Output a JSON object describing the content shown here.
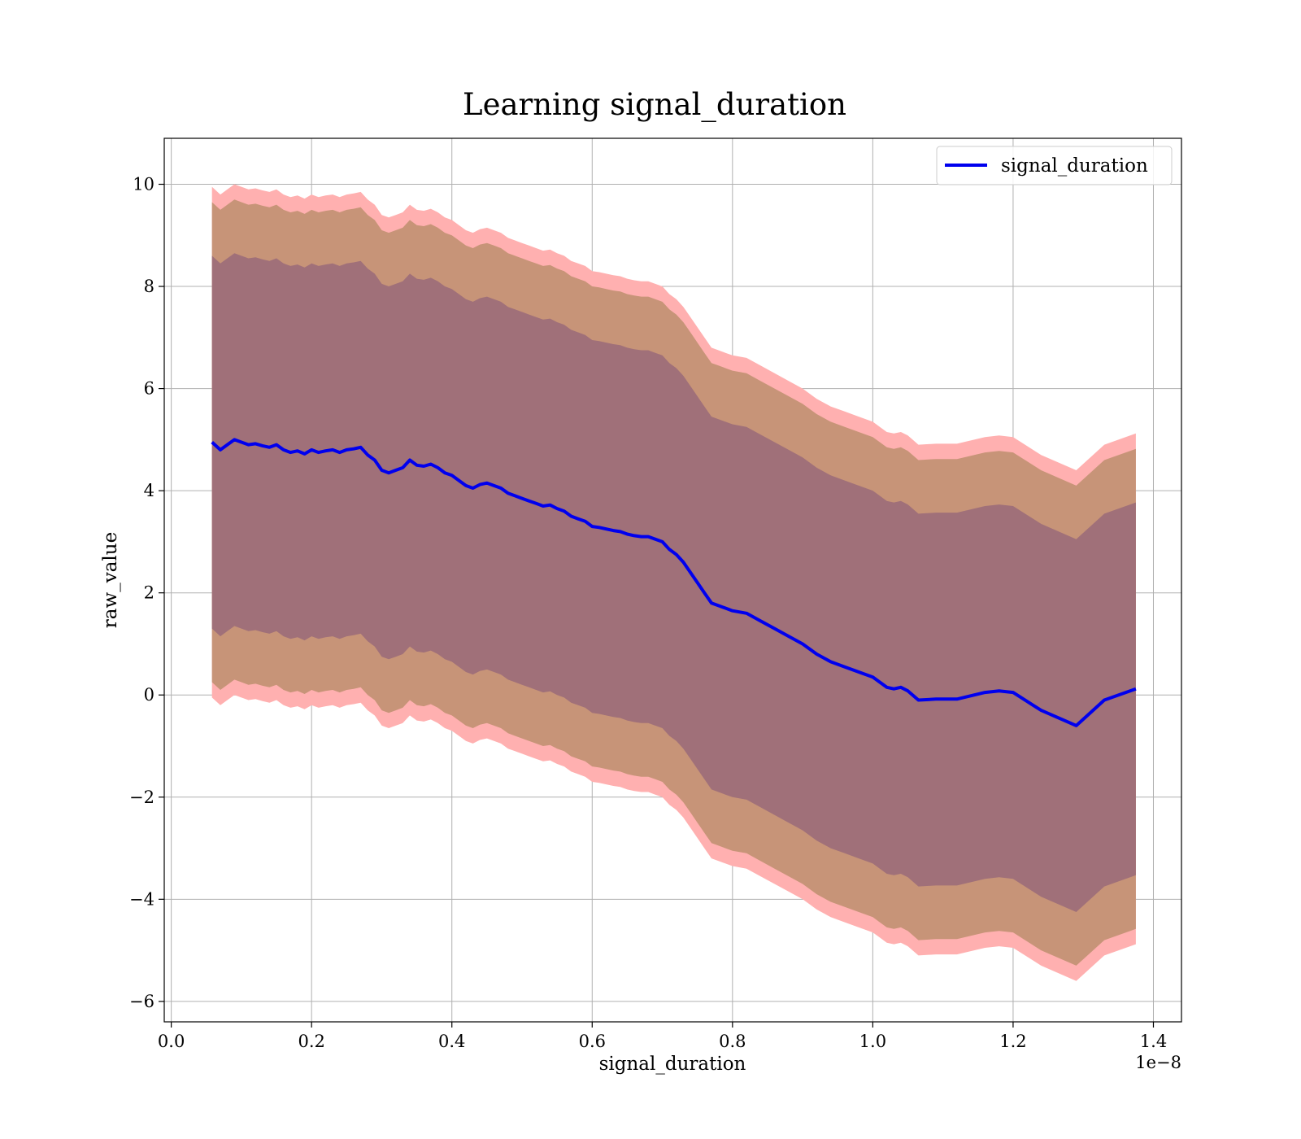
{
  "chart_data": {
    "type": "line",
    "title": "Learning signal_duration",
    "xlabel": "signal_duration",
    "ylabel": "raw_value",
    "x_offset_label": "1e−8",
    "xlim": [
      -0.01,
      1.44
    ],
    "ylim": [
      -6.4,
      10.9
    ],
    "x_ticks": [
      0.0,
      0.2,
      0.4,
      0.6,
      0.8,
      1.0,
      1.2,
      1.4
    ],
    "x_tick_labels": [
      "0.0",
      "0.2",
      "0.4",
      "0.6",
      "0.8",
      "1.0",
      "1.2",
      "1.4"
    ],
    "y_ticks": [
      -6,
      -4,
      -2,
      0,
      2,
      4,
      6,
      8,
      10
    ],
    "y_tick_labels": [
      "−6",
      "−4",
      "−2",
      "0",
      "2",
      "4",
      "6",
      "8",
      "10"
    ],
    "grid": true,
    "legend_position": "top-right",
    "colors": {
      "line": "#0000ee",
      "band_outer": "#ffb0b0",
      "band_middle": "#c79478",
      "band_inner": "#a07079",
      "grid": "#b0b0b0"
    },
    "series": [
      {
        "name": "signal_duration",
        "x": [
          0.058,
          0.07,
          0.08,
          0.09,
          0.1,
          0.11,
          0.12,
          0.13,
          0.14,
          0.15,
          0.16,
          0.17,
          0.18,
          0.19,
          0.2,
          0.21,
          0.22,
          0.23,
          0.24,
          0.25,
          0.26,
          0.27,
          0.28,
          0.29,
          0.3,
          0.31,
          0.32,
          0.33,
          0.34,
          0.35,
          0.36,
          0.37,
          0.38,
          0.39,
          0.4,
          0.41,
          0.42,
          0.43,
          0.44,
          0.45,
          0.46,
          0.47,
          0.48,
          0.49,
          0.5,
          0.51,
          0.52,
          0.53,
          0.54,
          0.55,
          0.56,
          0.57,
          0.58,
          0.59,
          0.6,
          0.61,
          0.62,
          0.63,
          0.64,
          0.65,
          0.66,
          0.67,
          0.68,
          0.69,
          0.7,
          0.71,
          0.72,
          0.73,
          0.74,
          0.75,
          0.76,
          0.77,
          0.78,
          0.79,
          0.8,
          0.82,
          0.84,
          0.86,
          0.88,
          0.9,
          0.92,
          0.94,
          0.96,
          0.98,
          1.0,
          1.01,
          1.02,
          1.03,
          1.04,
          1.05,
          1.065,
          1.09,
          1.12,
          1.16,
          1.18,
          1.2,
          1.24,
          1.29,
          1.33,
          1.375
        ],
        "values": [
          4.95,
          4.8,
          4.9,
          5.0,
          4.95,
          4.9,
          4.92,
          4.88,
          4.85,
          4.9,
          4.8,
          4.75,
          4.78,
          4.72,
          4.8,
          4.75,
          4.78,
          4.8,
          4.75,
          4.8,
          4.82,
          4.85,
          4.7,
          4.6,
          4.4,
          4.35,
          4.4,
          4.45,
          4.6,
          4.5,
          4.48,
          4.52,
          4.45,
          4.35,
          4.3,
          4.2,
          4.1,
          4.05,
          4.12,
          4.15,
          4.1,
          4.05,
          3.95,
          3.9,
          3.85,
          3.8,
          3.75,
          3.7,
          3.72,
          3.65,
          3.6,
          3.5,
          3.45,
          3.4,
          3.3,
          3.28,
          3.25,
          3.22,
          3.2,
          3.15,
          3.12,
          3.1,
          3.1,
          3.05,
          3.0,
          2.85,
          2.75,
          2.6,
          2.4,
          2.2,
          2.0,
          1.8,
          1.75,
          1.7,
          1.65,
          1.6,
          1.45,
          1.3,
          1.15,
          1.0,
          0.8,
          0.65,
          0.55,
          0.45,
          0.35,
          0.25,
          0.15,
          0.12,
          0.15,
          0.08,
          -0.1,
          -0.08,
          -0.08,
          0.05,
          0.08,
          0.05,
          -0.3,
          -0.6,
          -0.1,
          0.12
        ],
        "band_inner_upper": [
          8.6,
          8.45,
          8.55,
          8.65,
          8.6,
          8.55,
          8.57,
          8.53,
          8.5,
          8.55,
          8.45,
          8.4,
          8.43,
          8.37,
          8.45,
          8.4,
          8.43,
          8.45,
          8.4,
          8.45,
          8.47,
          8.5,
          8.35,
          8.25,
          8.05,
          8.0,
          8.05,
          8.1,
          8.25,
          8.15,
          8.13,
          8.17,
          8.1,
          8.0,
          7.95,
          7.85,
          7.75,
          7.7,
          7.77,
          7.8,
          7.75,
          7.7,
          7.6,
          7.55,
          7.5,
          7.45,
          7.4,
          7.35,
          7.37,
          7.3,
          7.25,
          7.15,
          7.1,
          7.05,
          6.95,
          6.93,
          6.9,
          6.87,
          6.85,
          6.8,
          6.77,
          6.75,
          6.75,
          6.7,
          6.65,
          6.5,
          6.4,
          6.25,
          6.05,
          5.85,
          5.65,
          5.45,
          5.4,
          5.35,
          5.3,
          5.25,
          5.1,
          4.95,
          4.8,
          4.65,
          4.45,
          4.3,
          4.2,
          4.1,
          4.0,
          3.9,
          3.8,
          3.77,
          3.8,
          3.73,
          3.55,
          3.57,
          3.57,
          3.7,
          3.73,
          3.7,
          3.35,
          3.05,
          3.55,
          3.77
        ],
        "band_inner_lower": [
          1.3,
          1.15,
          1.25,
          1.35,
          1.3,
          1.25,
          1.27,
          1.23,
          1.2,
          1.25,
          1.15,
          1.1,
          1.13,
          1.07,
          1.15,
          1.1,
          1.13,
          1.15,
          1.1,
          1.15,
          1.17,
          1.2,
          1.05,
          0.95,
          0.75,
          0.7,
          0.75,
          0.8,
          0.95,
          0.85,
          0.83,
          0.87,
          0.8,
          0.7,
          0.65,
          0.55,
          0.45,
          0.4,
          0.47,
          0.5,
          0.45,
          0.4,
          0.3,
          0.25,
          0.2,
          0.15,
          0.1,
          0.05,
          0.07,
          0.0,
          -0.05,
          -0.15,
          -0.2,
          -0.25,
          -0.35,
          -0.37,
          -0.4,
          -0.43,
          -0.45,
          -0.5,
          -0.53,
          -0.55,
          -0.55,
          -0.6,
          -0.65,
          -0.8,
          -0.9,
          -1.05,
          -1.25,
          -1.45,
          -1.65,
          -1.85,
          -1.9,
          -1.95,
          -2.0,
          -2.05,
          -2.2,
          -2.35,
          -2.5,
          -2.65,
          -2.85,
          -3.0,
          -3.1,
          -3.2,
          -3.3,
          -3.4,
          -3.5,
          -3.53,
          -3.5,
          -3.57,
          -3.75,
          -3.73,
          -3.73,
          -3.6,
          -3.57,
          -3.6,
          -3.95,
          -4.25,
          -3.75,
          -3.53
        ],
        "band_middle_upper": [
          9.65,
          9.5,
          9.6,
          9.7,
          9.65,
          9.6,
          9.62,
          9.58,
          9.55,
          9.6,
          9.5,
          9.45,
          9.48,
          9.42,
          9.5,
          9.45,
          9.48,
          9.5,
          9.45,
          9.5,
          9.52,
          9.55,
          9.4,
          9.3,
          9.1,
          9.05,
          9.1,
          9.15,
          9.3,
          9.2,
          9.18,
          9.22,
          9.15,
          9.05,
          9.0,
          8.9,
          8.8,
          8.75,
          8.82,
          8.85,
          8.8,
          8.75,
          8.65,
          8.6,
          8.55,
          8.5,
          8.45,
          8.4,
          8.42,
          8.35,
          8.3,
          8.2,
          8.15,
          8.1,
          8.0,
          7.98,
          7.95,
          7.92,
          7.9,
          7.85,
          7.82,
          7.8,
          7.8,
          7.75,
          7.7,
          7.55,
          7.45,
          7.3,
          7.1,
          6.9,
          6.7,
          6.5,
          6.45,
          6.4,
          6.35,
          6.3,
          6.15,
          6.0,
          5.85,
          5.7,
          5.5,
          5.35,
          5.25,
          5.15,
          5.05,
          4.95,
          4.85,
          4.82,
          4.85,
          4.78,
          4.6,
          4.62,
          4.62,
          4.75,
          4.78,
          4.75,
          4.4,
          4.1,
          4.6,
          4.82
        ],
        "band_middle_lower": [
          0.25,
          0.1,
          0.2,
          0.3,
          0.25,
          0.2,
          0.22,
          0.18,
          0.15,
          0.2,
          0.1,
          0.05,
          0.08,
          0.02,
          0.1,
          0.05,
          0.08,
          0.1,
          0.05,
          0.1,
          0.12,
          0.15,
          0.0,
          -0.1,
          -0.3,
          -0.35,
          -0.3,
          -0.25,
          -0.1,
          -0.2,
          -0.22,
          -0.18,
          -0.25,
          -0.35,
          -0.4,
          -0.5,
          -0.6,
          -0.65,
          -0.58,
          -0.55,
          -0.6,
          -0.65,
          -0.75,
          -0.8,
          -0.85,
          -0.9,
          -0.95,
          -1.0,
          -0.98,
          -1.05,
          -1.1,
          -1.2,
          -1.25,
          -1.3,
          -1.4,
          -1.42,
          -1.45,
          -1.48,
          -1.5,
          -1.55,
          -1.58,
          -1.6,
          -1.6,
          -1.65,
          -1.7,
          -1.85,
          -1.95,
          -2.1,
          -2.3,
          -2.5,
          -2.7,
          -2.9,
          -2.95,
          -3.0,
          -3.05,
          -3.1,
          -3.25,
          -3.4,
          -3.55,
          -3.7,
          -3.9,
          -4.05,
          -4.15,
          -4.25,
          -4.35,
          -4.45,
          -4.55,
          -4.58,
          -4.55,
          -4.62,
          -4.8,
          -4.78,
          -4.78,
          -4.65,
          -4.62,
          -4.65,
          -5.0,
          -5.3,
          -4.8,
          -4.58
        ],
        "band_outer_upper": [
          9.95,
          9.8,
          9.9,
          10.0,
          9.95,
          9.9,
          9.92,
          9.88,
          9.85,
          9.9,
          9.8,
          9.75,
          9.78,
          9.72,
          9.8,
          9.75,
          9.78,
          9.8,
          9.75,
          9.8,
          9.82,
          9.85,
          9.7,
          9.6,
          9.4,
          9.35,
          9.4,
          9.45,
          9.6,
          9.5,
          9.48,
          9.52,
          9.45,
          9.35,
          9.3,
          9.2,
          9.1,
          9.05,
          9.12,
          9.15,
          9.1,
          9.05,
          8.95,
          8.9,
          8.85,
          8.8,
          8.75,
          8.7,
          8.72,
          8.65,
          8.6,
          8.5,
          8.45,
          8.4,
          8.3,
          8.28,
          8.25,
          8.22,
          8.2,
          8.15,
          8.12,
          8.1,
          8.1,
          8.05,
          8.0,
          7.85,
          7.75,
          7.6,
          7.4,
          7.2,
          7.0,
          6.8,
          6.75,
          6.7,
          6.65,
          6.6,
          6.45,
          6.3,
          6.15,
          6.0,
          5.8,
          5.65,
          5.55,
          5.45,
          5.35,
          5.25,
          5.15,
          5.12,
          5.15,
          5.08,
          4.9,
          4.92,
          4.92,
          5.05,
          5.08,
          5.05,
          4.7,
          4.4,
          4.9,
          5.12
        ],
        "band_outer_lower": [
          -0.05,
          -0.2,
          -0.1,
          0.0,
          -0.05,
          -0.1,
          -0.08,
          -0.12,
          -0.15,
          -0.1,
          -0.2,
          -0.25,
          -0.22,
          -0.28,
          -0.2,
          -0.25,
          -0.22,
          -0.2,
          -0.25,
          -0.2,
          -0.18,
          -0.15,
          -0.3,
          -0.4,
          -0.6,
          -0.65,
          -0.6,
          -0.55,
          -0.4,
          -0.5,
          -0.52,
          -0.48,
          -0.55,
          -0.65,
          -0.7,
          -0.8,
          -0.9,
          -0.95,
          -0.88,
          -0.85,
          -0.9,
          -0.95,
          -1.05,
          -1.1,
          -1.15,
          -1.2,
          -1.25,
          -1.3,
          -1.28,
          -1.35,
          -1.4,
          -1.5,
          -1.55,
          -1.6,
          -1.7,
          -1.72,
          -1.75,
          -1.78,
          -1.8,
          -1.85,
          -1.88,
          -1.9,
          -1.9,
          -1.95,
          -2.0,
          -2.15,
          -2.25,
          -2.4,
          -2.6,
          -2.8,
          -3.0,
          -3.2,
          -3.25,
          -3.3,
          -3.35,
          -3.4,
          -3.55,
          -3.7,
          -3.85,
          -4.0,
          -4.2,
          -4.35,
          -4.45,
          -4.55,
          -4.65,
          -4.75,
          -4.85,
          -4.88,
          -4.85,
          -4.92,
          -5.1,
          -5.08,
          -5.08,
          -4.95,
          -4.92,
          -4.95,
          -5.3,
          -5.6,
          -5.1,
          -4.88
        ]
      }
    ]
  }
}
